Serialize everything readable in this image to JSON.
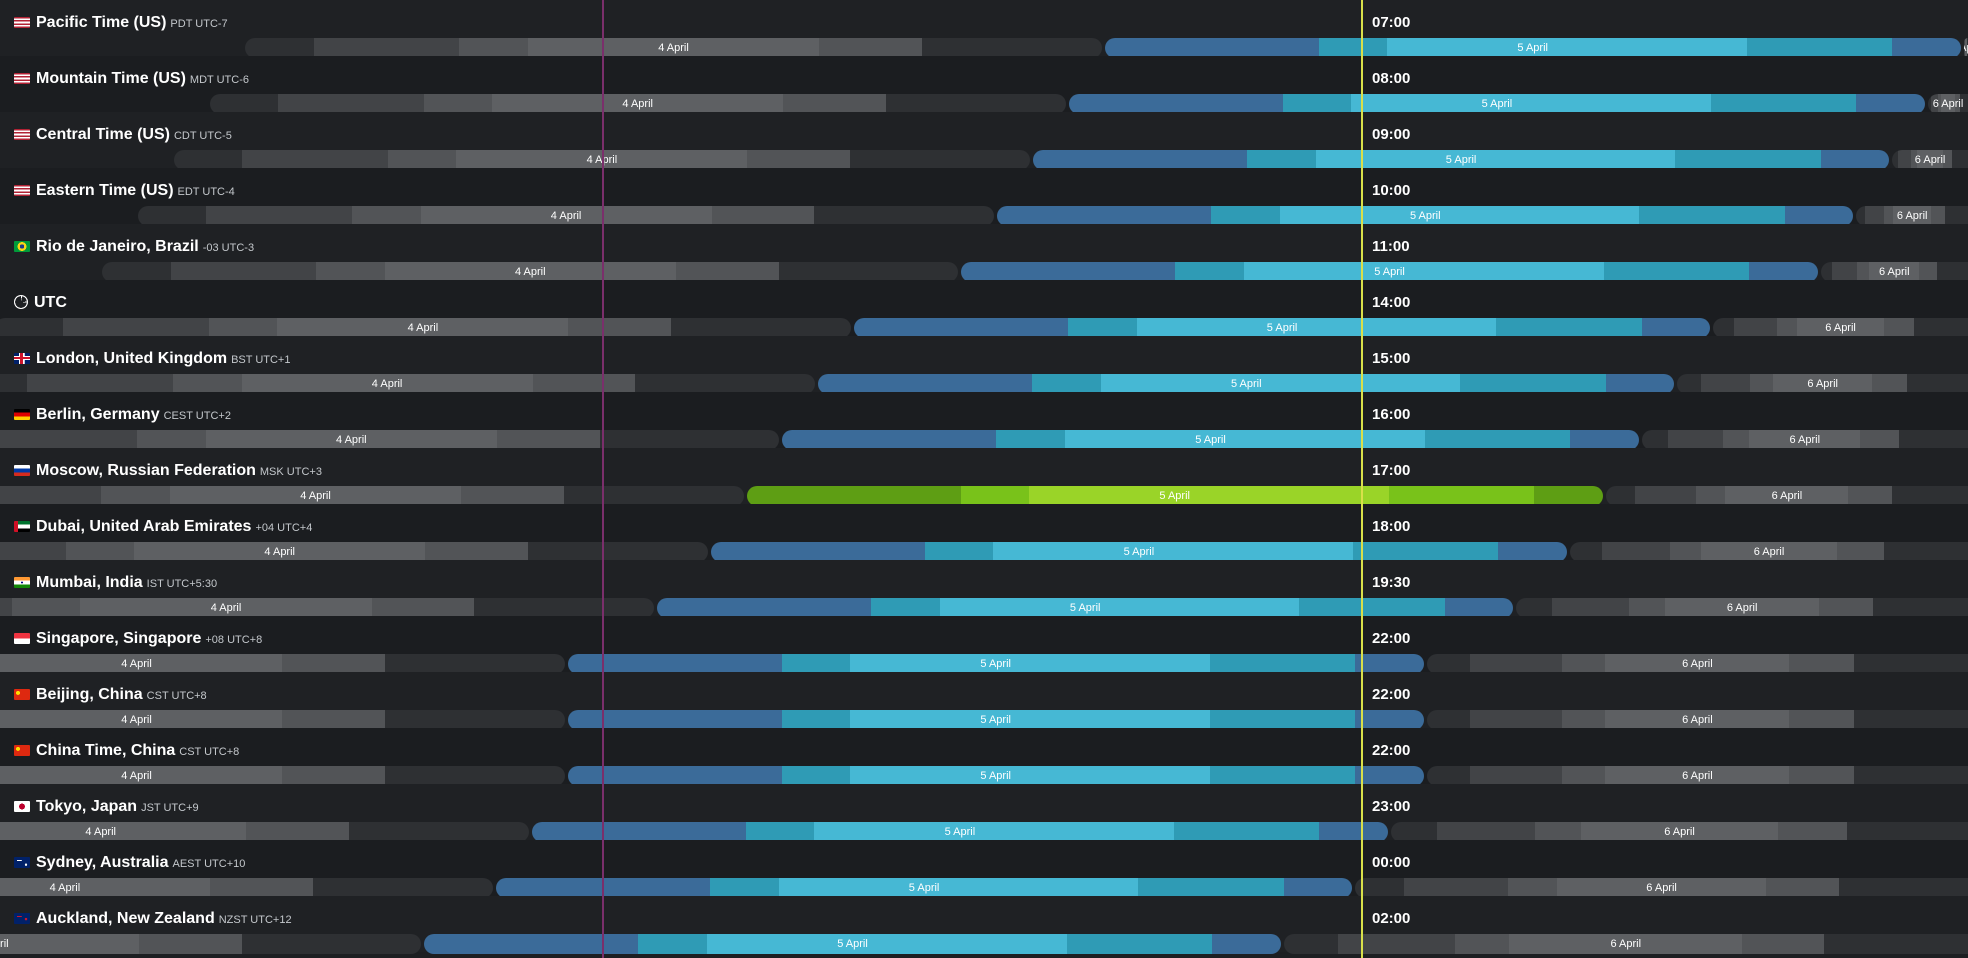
{
  "colors": {
    "background": "#1d1f22",
    "current_line": "#d9e04a",
    "reference_line": "#7a2f6b",
    "highlight_day": "#9ad428",
    "day_blue": "#46b8d4"
  },
  "zones": [
    {
      "name": "Pacific Time (US)",
      "abbr": "PDT UTC-7",
      "time": "07:00",
      "flag": "us-flag-icon",
      "offset": -7
    },
    {
      "name": "Mountain Time (US)",
      "abbr": "MDT UTC-6",
      "time": "08:00",
      "flag": "us-flag-icon",
      "offset": -6
    },
    {
      "name": "Central Time (US)",
      "abbr": "CDT UTC-5",
      "time": "09:00",
      "flag": "us-flag-icon",
      "offset": -5
    },
    {
      "name": "Eastern Time (US)",
      "abbr": "EDT UTC-4",
      "time": "10:00",
      "flag": "us-flag-icon",
      "offset": -4
    },
    {
      "name": "Rio de Janeiro, Brazil",
      "abbr": "-03 UTC-3",
      "time": "11:00",
      "flag": "br-flag-icon",
      "offset": -3
    },
    {
      "name": "UTC",
      "abbr": "",
      "time": "14:00",
      "flag": "clock-icon",
      "offset": 0
    },
    {
      "name": "London, United Kingdom",
      "abbr": "BST UTC+1",
      "time": "15:00",
      "flag": "gb-flag-icon",
      "offset": 1
    },
    {
      "name": "Berlin, Germany",
      "abbr": "CEST UTC+2",
      "time": "16:00",
      "flag": "de-flag-icon",
      "offset": 2
    },
    {
      "name": "Moscow, Russian Federation",
      "abbr": "MSK UTC+3",
      "time": "17:00",
      "flag": "ru-flag-icon",
      "offset": 3,
      "highlight": true
    },
    {
      "name": "Dubai, United Arab Emirates",
      "abbr": "+04 UTC+4",
      "time": "18:00",
      "flag": "ae-flag-icon",
      "offset": 4
    },
    {
      "name": "Mumbai, India",
      "abbr": "IST UTC+5:30",
      "time": "19:30",
      "flag": "in-flag-icon",
      "offset": 5.5
    },
    {
      "name": "Singapore, Singapore",
      "abbr": "+08 UTC+8",
      "time": "22:00",
      "flag": "sg-flag-icon",
      "offset": 8
    },
    {
      "name": "Beijing, China",
      "abbr": "CST UTC+8",
      "time": "22:00",
      "flag": "cn-flag-icon",
      "offset": 8
    },
    {
      "name": "China Time, China",
      "abbr": "CST UTC+8",
      "time": "22:00",
      "flag": "cn-flag-icon",
      "offset": 8
    },
    {
      "name": "Tokyo, Japan",
      "abbr": "JST UTC+9",
      "time": "23:00",
      "flag": "jp-flag-icon",
      "offset": 9
    },
    {
      "name": "Sydney, Australia",
      "abbr": "AEST UTC+10",
      "time": "00:00",
      "flag": "au-flag-icon",
      "offset": 10
    },
    {
      "name": "Auckland, New Zealand",
      "abbr": "NZST UTC+12",
      "time": "02:00",
      "flag": "nz-flag-icon",
      "offset": 12
    }
  ],
  "day_labels": {
    "prev": "4 April",
    "current": "5 April",
    "next": "6 April"
  },
  "timeline": {
    "hour_width": 35.8,
    "day5_start_utc": 854,
    "day_gap": 3,
    "row_height": 56
  }
}
